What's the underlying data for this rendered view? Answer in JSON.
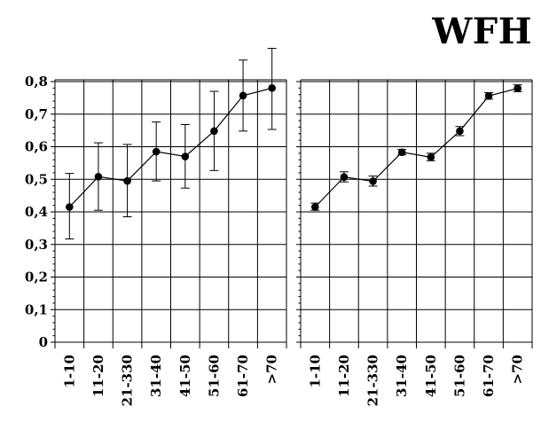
{
  "title": "WFH",
  "chart_data": [
    {
      "type": "line",
      "categories": [
        "1-10",
        "11-20",
        "21-330",
        "31-40",
        "41-50",
        "51-60",
        "61-70",
        ">70"
      ],
      "values": [
        0.415,
        0.508,
        0.495,
        0.585,
        0.57,
        0.648,
        0.757,
        0.78
      ],
      "error_low": [
        0.317,
        0.405,
        0.385,
        0.495,
        0.473,
        0.527,
        0.648,
        0.653
      ],
      "error_high": [
        0.518,
        0.612,
        0.607,
        0.676,
        0.668,
        0.77,
        0.866,
        0.902
      ],
      "ylim": [
        0,
        0.8
      ],
      "yticks": [
        "0",
        "0,1",
        "0,2",
        "0,3",
        "0,4",
        "0,5",
        "0,6",
        "0,7",
        "0,8"
      ],
      "grid": true
    },
    {
      "type": "line",
      "categories": [
        "1-10",
        "11-20",
        "21-330",
        "31-40",
        "41-50",
        "51-60",
        "61-70",
        ">70"
      ],
      "values": [
        0.415,
        0.507,
        0.494,
        0.583,
        0.568,
        0.648,
        0.756,
        0.779
      ],
      "error_low": [
        0.405,
        0.492,
        0.479,
        0.575,
        0.557,
        0.634,
        0.746,
        0.769
      ],
      "error_high": [
        0.427,
        0.523,
        0.51,
        0.592,
        0.58,
        0.662,
        0.766,
        0.79
      ],
      "ylim": [
        0,
        0.8
      ],
      "grid": true
    }
  ]
}
